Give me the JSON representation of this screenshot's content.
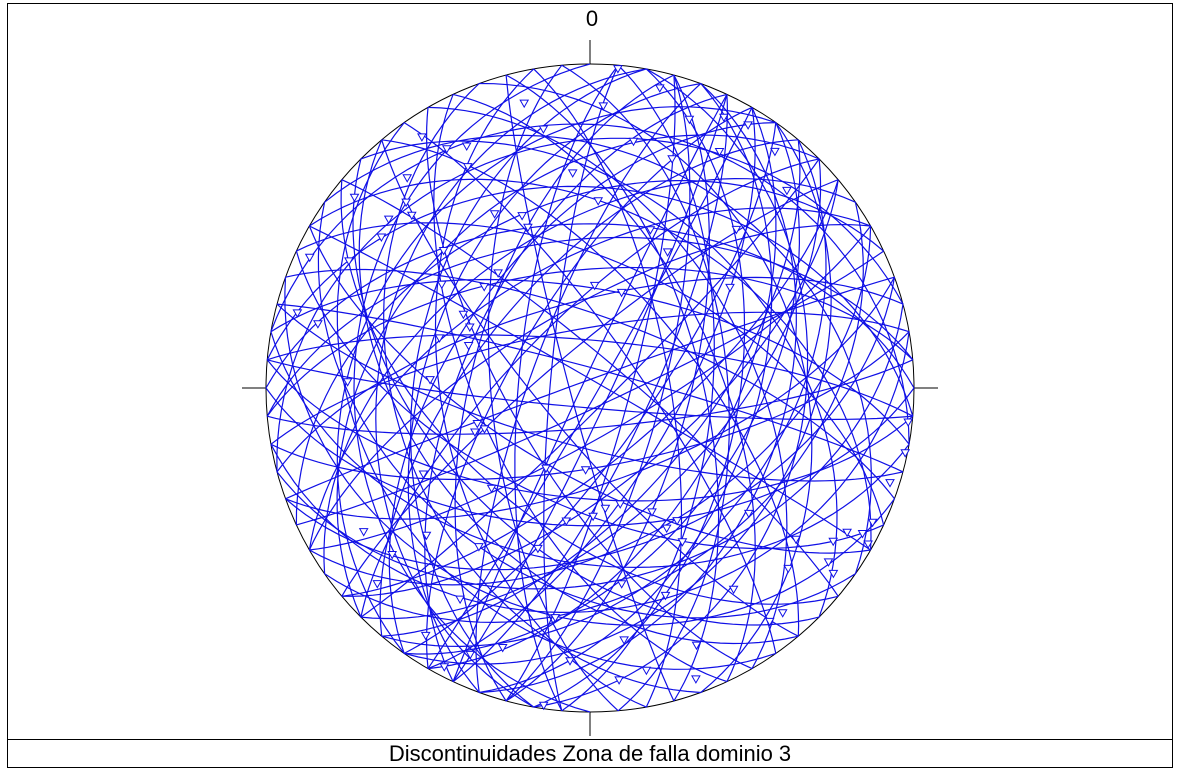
{
  "caption": "Discontinuidades Zona de falla dominio 3",
  "north_label": "0",
  "colors": {
    "trace": "#1010e6",
    "frame": "#000000",
    "background": "#ffffff"
  },
  "chart_data": {
    "type": "scatter",
    "projection": "equal-area lower-hemisphere stereonet",
    "title": "Discontinuidades Zona de falla dominio 3",
    "north_tick_label": "0",
    "poles": [
      {
        "trend": 160.0,
        "plunge": 5.0
      },
      {
        "trend": 172.3,
        "plunge": 22.6
      },
      {
        "trend": 213.6,
        "plunge": 9.2
      },
      {
        "trend": 178.6,
        "plunge": 57.5
      },
      {
        "trend": 28.7,
        "plunge": 17.9
      },
      {
        "trend": 2.5,
        "plunge": 41.7
      },
      {
        "trend": 208.8,
        "plunge": 67.0
      },
      {
        "trend": 329.1,
        "plunge": 15.0
      },
      {
        "trend": 198.0,
        "plunge": 46.8
      },
      {
        "trend": 146.7,
        "plunge": 49.5
      },
      {
        "trend": 101.6,
        "plunge": 0.8
      },
      {
        "trend": 122.2,
        "plunge": 12.3
      },
      {
        "trend": 300.2,
        "plunge": 52.7
      },
      {
        "trend": 297.8,
        "plunge": 17.0
      },
      {
        "trend": 284.4,
        "plunge": 7.5
      },
      {
        "trend": 338.9,
        "plunge": 45.8
      },
      {
        "trend": 204.2,
        "plunge": 10.8
      },
      {
        "trend": 229.9,
        "plunge": 21.3
      },
      {
        "trend": 331.1,
        "plunge": 23.0
      },
      {
        "trend": 54.3,
        "plunge": 45.8
      },
      {
        "trend": 188.6,
        "plunge": 29.1
      },
      {
        "trend": 184.2,
        "plunge": 16.7
      },
      {
        "trend": 20.9,
        "plunge": 46.6
      },
      {
        "trend": 188.3,
        "plunge": 1.2
      },
      {
        "trend": 321.4,
        "plunge": 52.5
      },
      {
        "trend": 211.6,
        "plunge": 24.5
      },
      {
        "trend": 2.6,
        "plunge": 64.1
      },
      {
        "trend": 151.3,
        "plunge": 49.2
      },
      {
        "trend": 289.3,
        "plunge": 57.4
      },
      {
        "trend": 273.0,
        "plunge": 49.1
      },
      {
        "trend": 288.4,
        "plunge": 49.5
      },
      {
        "trend": 119.3,
        "plunge": 1.8
      },
      {
        "trend": 314.1,
        "plunge": 24.4
      },
      {
        "trend": 310.0,
        "plunge": 20.0
      },
      {
        "trend": 305.9,
        "plunge": 21.6
      },
      {
        "trend": 315.3,
        "plunge": 20.4
      },
      {
        "trend": 283.3,
        "plunge": 14.8
      },
      {
        "trend": 326.2,
        "plunge": 7.5
      },
      {
        "trend": 319.0,
        "plunge": 15.1
      },
      {
        "trend": 295.0,
        "plunge": 5.1
      },
      {
        "trend": 168.7,
        "plunge": 12.2
      },
      {
        "trend": 174.3,
        "plunge": 10.4
      },
      {
        "trend": 26.3,
        "plunge": 7.5
      },
      {
        "trend": 215.0,
        "plunge": 40.0
      },
      {
        "trend": 305.0,
        "plunge": 43.5
      },
      {
        "trend": 347.0,
        "plunge": 10.7
      },
      {
        "trend": 190.1,
        "plunge": 55.7
      },
      {
        "trend": 10.0,
        "plunge": 23.7
      },
      {
        "trend": 31.0,
        "plunge": 5.9
      },
      {
        "trend": 128.3,
        "plunge": 37.6
      },
      {
        "trend": 142.4,
        "plunge": 10.0
      },
      {
        "trend": 165.4,
        "plunge": 59.7
      },
      {
        "trend": 313.8,
        "plunge": 52.7
      },
      {
        "trend": 183.1,
        "plunge": 69.4
      },
      {
        "trend": 237.6,
        "plunge": 18.4
      },
      {
        "trend": 242.7,
        "plunge": 41.7
      },
      {
        "trend": 118.1,
        "plunge": 5.2
      },
      {
        "trend": 44.9,
        "plunge": 15.0
      },
      {
        "trend": 5.0,
        "plunge": 1.2
      },
      {
        "trend": 153.4,
        "plunge": 54.8
      },
      {
        "trend": 228.0,
        "plunge": 32.6
      },
      {
        "trend": 139.4,
        "plunge": 9.5
      },
      {
        "trend": 115.4,
        "plunge": 3.9
      },
      {
        "trend": 144.5,
        "plunge": 24.7
      },
      {
        "trend": 349.8,
        "plunge": 19.9
      },
      {
        "trend": 160.0,
        "plunge": 32.4
      },
      {
        "trend": 198.6,
        "plunge": 16.6
      },
      {
        "trend": 29.7,
        "plunge": 50.0
      },
      {
        "trend": 313.2,
        "plunge": 38.0
      },
      {
        "trend": 338.5,
        "plunge": 42.3
      },
      {
        "trend": 296.9,
        "plunge": 55.8
      },
      {
        "trend": 126.3,
        "plunge": 22.2
      },
      {
        "trend": 248.8,
        "plunge": 61.4
      },
      {
        "trend": 107.5,
        "plunge": 3.3
      },
      {
        "trend": 249.1,
        "plunge": 58.8
      },
      {
        "trend": 126.1,
        "plunge": 9.8
      },
      {
        "trend": 149.0,
        "plunge": 43.9
      },
      {
        "trend": 331.3,
        "plunge": 38.6
      },
      {
        "trend": 170.8,
        "plunge": 38.7
      },
      {
        "trend": 172.7,
        "plunge": 59.3
      },
      {
        "trend": 96.1,
        "plunge": 1.4
      },
      {
        "trend": 227.4,
        "plunge": 11.8
      },
      {
        "trend": 333.0,
        "plunge": 17.3
      },
      {
        "trend": 157.5,
        "plunge": 15.2
      },
      {
        "trend": 252.5,
        "plunge": 60.1
      },
      {
        "trend": 224.5,
        "plunge": 54.3
      },
      {
        "trend": 355.4,
        "plunge": 33.8
      },
      {
        "trend": 18.3,
        "plunge": 64.6
      },
      {
        "trend": 13.1,
        "plunge": 5.5
      },
      {
        "trend": 207.6,
        "plunge": 3.3
      },
      {
        "trend": 20.3,
        "plunge": 12.6
      },
      {
        "trend": 2.7,
        "plunge": 13.9
      },
      {
        "trend": 132.3,
        "plunge": 18.4
      },
      {
        "trend": 42.7,
        "plunge": 33.8
      },
      {
        "trend": 127.3,
        "plunge": 6.2
      },
      {
        "trend": 309.0,
        "plunge": 7.2
      },
      {
        "trend": 38.0,
        "plunge": 8.1
      },
      {
        "trend": 271.5,
        "plunge": 26.1
      },
      {
        "trend": 119.3,
        "plunge": 9.9
      },
      {
        "trend": 19.7,
        "plunge": 25.8
      }
    ],
    "great_circles": [
      {
        "strike": 5.0,
        "dip": 59.0
      },
      {
        "strike": 280.0,
        "dip": 20.0
      },
      {
        "strike": 35.0,
        "dip": 75.0
      },
      {
        "strike": 190.0,
        "dip": 45.0
      },
      {
        "strike": 30.0,
        "dip": 68.0
      },
      {
        "strike": 275.0,
        "dip": 38.0
      },
      {
        "strike": 80.0,
        "dip": 32.0
      },
      {
        "strike": 290.0,
        "dip": 72.0
      },
      {
        "strike": 25.0,
        "dip": 85.0
      },
      {
        "strike": 215.0,
        "dip": 55.0
      },
      {
        "strike": 15.0,
        "dip": 80.0
      },
      {
        "strike": 300.0,
        "dip": 45.0
      },
      {
        "strike": 95.0,
        "dip": 62.0
      },
      {
        "strike": 40.0,
        "dip": 42.0
      },
      {
        "strike": 240.0,
        "dip": 70.0
      },
      {
        "strike": 10.0,
        "dip": 34.0
      },
      {
        "strike": 310.0,
        "dip": 82.0
      },
      {
        "strike": 130.0,
        "dip": 55.0
      },
      {
        "strike": 200.0,
        "dip": 75.0
      },
      {
        "strike": 60.0,
        "dip": 50.0
      },
      {
        "strike": 20.0,
        "dip": 40.0
      },
      {
        "strike": 265.0,
        "dip": 60.0
      },
      {
        "strike": 180.0,
        "dip": 28.0
      },
      {
        "strike": 45.0,
        "dip": 85.0
      },
      {
        "strike": 100.0,
        "dip": 45.0
      },
      {
        "strike": 225.0,
        "dip": 38.0
      },
      {
        "strike": 350.0,
        "dip": 70.0
      },
      {
        "strike": 140.0,
        "dip": 78.0
      },
      {
        "strike": 255.0,
        "dip": 25.0
      },
      {
        "strike": 70.0,
        "dip": 66.0
      },
      {
        "strike": 195.0,
        "dip": 60.0
      },
      {
        "strike": 330.0,
        "dip": 50.0
      },
      {
        "strike": 110.0,
        "dip": 30.0
      },
      {
        "strike": 30.0,
        "dip": 55.0
      },
      {
        "strike": 285.0,
        "dip": 85.0
      },
      {
        "strike": 160.0,
        "dip": 40.0
      },
      {
        "strike": 50.0,
        "dip": 72.0
      },
      {
        "strike": 205.0,
        "dip": 88.0
      },
      {
        "strike": 340.0,
        "dip": 35.0
      },
      {
        "strike": 85.0,
        "dip": 80.0
      },
      {
        "strike": 235.0,
        "dip": 50.0
      },
      {
        "strike": 15.0,
        "dip": 65.0
      },
      {
        "strike": 120.0,
        "dip": 68.0
      },
      {
        "strike": 270.0,
        "dip": 48.0
      },
      {
        "strike": 185.0,
        "dip": 80.0
      },
      {
        "strike": 55.0,
        "dip": 38.0
      },
      {
        "strike": 320.0,
        "dip": 65.0
      },
      {
        "strike": 145.0,
        "dip": 30.0
      },
      {
        "strike": 210.0,
        "dip": 70.0
      },
      {
        "strike": 35.0,
        "dip": 50.0
      },
      {
        "strike": 260.0,
        "dip": 75.0
      },
      {
        "strike": 90.0,
        "dip": 55.0
      },
      {
        "strike": 175.0,
        "dip": 65.0
      },
      {
        "strike": 305.0,
        "dip": 30.0
      },
      {
        "strike": 25.0,
        "dip": 75.0
      },
      {
        "strike": 245.0,
        "dip": 42.0
      },
      {
        "strike": 65.0,
        "dip": 85.0
      },
      {
        "strike": 135.0,
        "dip": 50.0
      },
      {
        "strike": 355.0,
        "dip": 55.0
      },
      {
        "strike": 220.0,
        "dip": 62.0
      },
      {
        "strike": 75.0,
        "dip": 40.0
      },
      {
        "strike": 295.0,
        "dip": 58.0
      },
      {
        "strike": 165.0,
        "dip": 85.0
      },
      {
        "strike": 40.0,
        "dip": 62.0
      },
      {
        "strike": 250.0,
        "dip": 88.0
      },
      {
        "strike": 105.0,
        "dip": 75.0
      },
      {
        "strike": 190.0,
        "dip": 35.0
      },
      {
        "strike": 325.0,
        "dip": 78.0
      },
      {
        "strike": 20.0,
        "dip": 48.0
      },
      {
        "strike": 230.0,
        "dip": 80.0
      },
      {
        "strike": 115.0,
        "dip": 60.0
      },
      {
        "strike": 280.0,
        "dip": 65.0
      },
      {
        "strike": 150.0,
        "dip": 70.0
      },
      {
        "strike": 45.0,
        "dip": 58.0
      },
      {
        "strike": 200.0,
        "dip": 48.0
      },
      {
        "strike": 345.0,
        "dip": 62.0
      },
      {
        "strike": 80.0,
        "dip": 70.0
      },
      {
        "strike": 215.0,
        "dip": 30.0
      },
      {
        "strike": 30.0,
        "dip": 88.0
      },
      {
        "strike": 125.0,
        "dip": 40.0
      },
      {
        "strike": 275.0,
        "dip": 78.0
      },
      {
        "strike": 10.0,
        "dip": 52.0
      },
      {
        "strike": 240.0,
        "dip": 58.0
      },
      {
        "strike": 60.0,
        "dip": 78.0
      },
      {
        "strike": 170.0,
        "dip": 52.0
      },
      {
        "strike": 315.0,
        "dip": 42.0
      },
      {
        "strike": 95.0,
        "dip": 85.0
      },
      {
        "strike": 205.0,
        "dip": 58.0
      },
      {
        "strike": 35.0,
        "dip": 35.0
      },
      {
        "strike": 265.0,
        "dip": 52.0
      },
      {
        "strike": 155.0,
        "dip": 62.0
      },
      {
        "strike": 50.0,
        "dip": 66.0
      },
      {
        "strike": 185.0,
        "dip": 72.0
      },
      {
        "strike": 300.0,
        "dip": 88.0
      },
      {
        "strike": 70.0,
        "dip": 48.0
      },
      {
        "strike": 225.0,
        "dip": 72.0
      },
      {
        "strike": 15.0,
        "dip": 72.0
      },
      {
        "strike": 140.0,
        "dip": 45.0
      },
      {
        "strike": 255.0,
        "dip": 68.0
      },
      {
        "strike": 335.0,
        "dip": 58.0
      }
    ]
  }
}
